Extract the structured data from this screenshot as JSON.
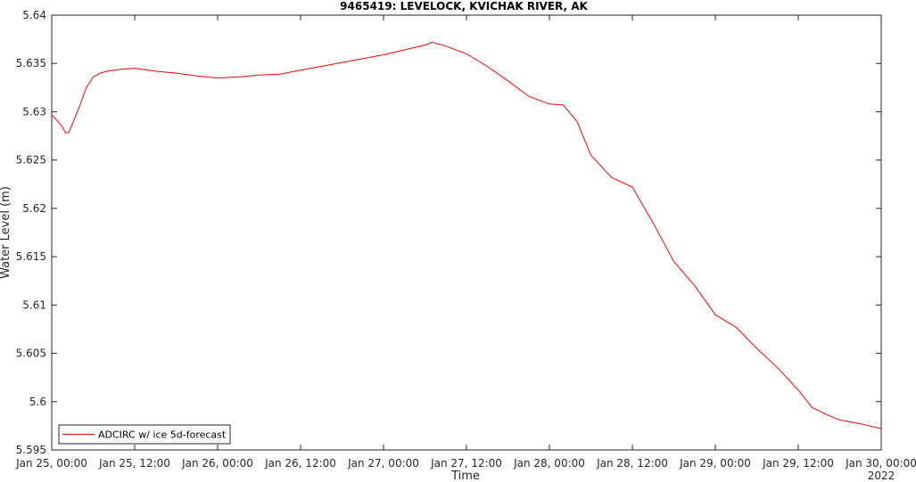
{
  "chart_data": {
    "type": "line",
    "title": "9465419: LEVELOCK, KVICHAK RIVER, AK",
    "xlabel": "Time",
    "ylabel": "Water Level (m)",
    "x_tick_labels": [
      "Jan 25, 00:00",
      "Jan 25, 12:00",
      "Jan 26, 00:00",
      "Jan 26, 12:00",
      "Jan 27, 00:00",
      "Jan 27, 12:00",
      "Jan 28, 00:00",
      "Jan 28, 12:00",
      "Jan 29, 00:00",
      "Jan 29, 12:00",
      "Jan 30, 00:00"
    ],
    "x_secondary_label": "2022",
    "y_tick_labels": [
      "5.595",
      "5.6",
      "5.605",
      "5.61",
      "5.615",
      "5.62",
      "5.625",
      "5.63",
      "5.635",
      "5.64"
    ],
    "ylim": [
      5.595,
      5.64
    ],
    "xlim": [
      "2022-01-25 00:00",
      "2022-01-30 00:00"
    ],
    "grid": false,
    "legend_position": "bottom-left",
    "series": [
      {
        "name": "ADCIRC w/ ice 5d-forecast",
        "color": "#ff0000",
        "x": [
          "2022-01-25 00:00",
          "2022-01-25 01:30",
          "2022-01-25 02:00",
          "2022-01-25 02:30",
          "2022-01-25 04:00",
          "2022-01-25 05:00",
          "2022-01-25 06:00",
          "2022-01-25 07:00",
          "2022-01-25 08:00",
          "2022-01-25 10:00",
          "2022-01-25 12:00",
          "2022-01-25 15:00",
          "2022-01-25 18:00",
          "2022-01-25 21:00",
          "2022-01-26 00:00",
          "2022-01-26 03:00",
          "2022-01-26 06:00",
          "2022-01-26 09:00",
          "2022-01-26 12:00",
          "2022-01-26 15:00",
          "2022-01-26 18:00",
          "2022-01-26 21:00",
          "2022-01-27 00:00",
          "2022-01-27 03:00",
          "2022-01-27 06:00",
          "2022-01-27 07:00",
          "2022-01-27 09:00",
          "2022-01-27 12:00",
          "2022-01-27 15:00",
          "2022-01-27 18:00",
          "2022-01-27 21:00",
          "2022-01-28 00:00",
          "2022-01-28 02:00",
          "2022-01-28 04:00",
          "2022-01-28 06:00",
          "2022-01-28 09:00",
          "2022-01-28 12:00",
          "2022-01-28 15:00",
          "2022-01-28 18:00",
          "2022-01-28 21:00",
          "2022-01-29 00:00",
          "2022-01-29 03:00",
          "2022-01-29 06:00",
          "2022-01-29 09:00",
          "2022-01-29 12:00",
          "2022-01-29 14:00",
          "2022-01-29 16:00",
          "2022-01-29 18:00",
          "2022-01-29 21:00",
          "2022-01-30 00:00"
        ],
        "y": [
          5.6297,
          5.6285,
          5.6278,
          5.6279,
          5.6305,
          5.6325,
          5.6336,
          5.634,
          5.6342,
          5.6344,
          5.6345,
          5.6342,
          5.634,
          5.6337,
          5.6335,
          5.6336,
          5.6338,
          5.6339,
          5.6343,
          5.6347,
          5.6351,
          5.6355,
          5.6359,
          5.6364,
          5.6369,
          5.6372,
          5.6368,
          5.636,
          5.6347,
          5.6332,
          5.6316,
          5.6308,
          5.6307,
          5.629,
          5.6255,
          5.6232,
          5.6222,
          5.6185,
          5.6145,
          5.612,
          5.609,
          5.6077,
          5.6055,
          5.6035,
          5.6012,
          5.5994,
          5.5987,
          5.5981,
          5.5977,
          5.5972
        ]
      }
    ]
  }
}
